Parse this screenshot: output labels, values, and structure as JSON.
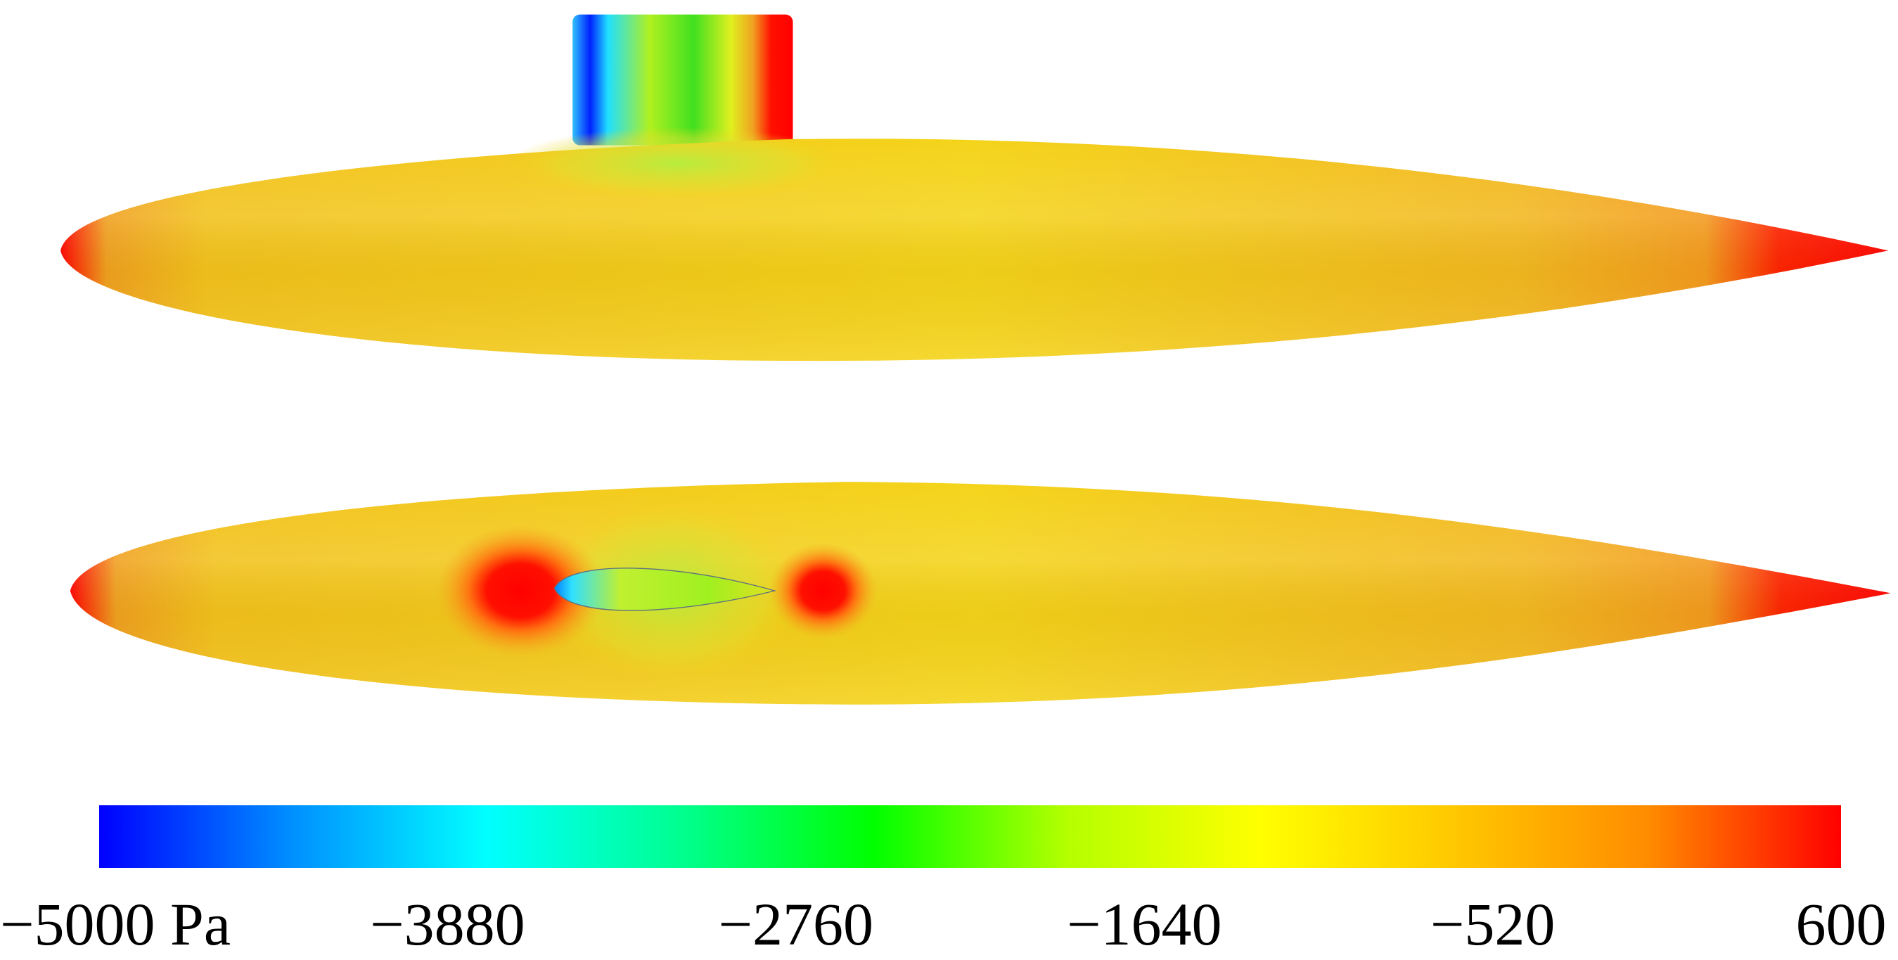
{
  "colorbar": {
    "range": [
      -5000,
      600
    ],
    "colors": [
      "#0000ff",
      "#0090ff",
      "#00ffff",
      "#00ff90",
      "#00ff00",
      "#b4ff00",
      "#ffff00",
      "#ffc800",
      "#ff8c00",
      "#ff0000"
    ],
    "ticks": [
      {
        "value": -5000,
        "label": "−5000 Pa"
      },
      {
        "value": -3880,
        "label": "−3880"
      },
      {
        "value": -2760,
        "label": "−2760"
      },
      {
        "value": -1640,
        "label": "−1640"
      },
      {
        "value": -520,
        "label": "−520"
      },
      {
        "value": 600,
        "label": "600"
      }
    ]
  }
}
